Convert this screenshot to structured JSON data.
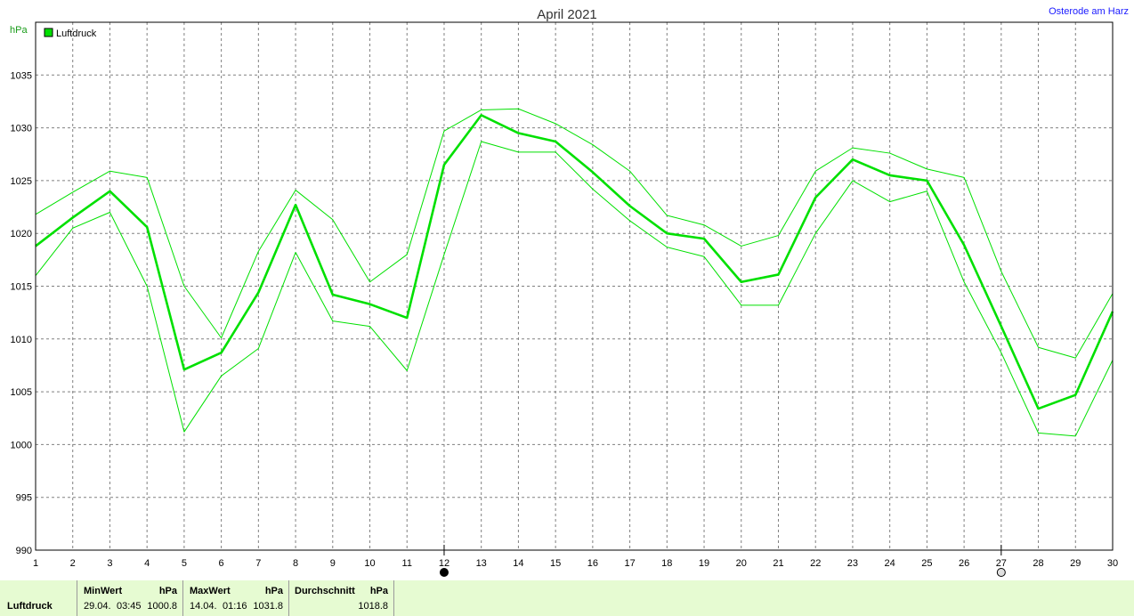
{
  "header": {
    "title": "April 2021",
    "location": "Osterode am Harz",
    "unit": "hPa"
  },
  "chart_data": {
    "type": "line",
    "title": "April 2021",
    "ylabel": "hPa",
    "xlabel": "",
    "legend": {
      "label": "Luftdruck",
      "placement": "top-left"
    },
    "x": [
      1,
      2,
      3,
      4,
      5,
      6,
      7,
      8,
      9,
      10,
      11,
      12,
      13,
      14,
      15,
      16,
      17,
      18,
      19,
      20,
      21,
      22,
      23,
      24,
      25,
      26,
      27,
      28,
      29,
      30
    ],
    "xlim": [
      1,
      30
    ],
    "ylim": [
      990,
      1040
    ],
    "yticks": [
      990,
      995,
      1000,
      1005,
      1010,
      1015,
      1020,
      1025,
      1030,
      1035
    ],
    "grid": true,
    "series": [
      {
        "name": "Luftdruck",
        "color": "#00e000",
        "values": [
          1018.8,
          1021.5,
          1024.0,
          1020.6,
          1007.1,
          1008.7,
          1014.4,
          1022.7,
          1014.2,
          1013.3,
          1012.0,
          1026.5,
          1031.2,
          1029.5,
          1028.7,
          1025.8,
          1022.6,
          1020.0,
          1019.5,
          1015.4,
          1016.1,
          1023.4,
          1027.0,
          1025.5,
          1025.0,
          1018.9,
          1011.2,
          1003.4,
          1004.7,
          1012.6
        ]
      },
      {
        "color": "#00e000",
        "values": [
          1021.8,
          1023.9,
          1025.9,
          1025.3,
          1015.0,
          1010.1,
          1018.3,
          1024.1,
          1021.3,
          1015.4,
          1018.0,
          1029.7,
          1031.7,
          1031.8,
          1030.4,
          1028.4,
          1025.9,
          1021.7,
          1020.8,
          1018.8,
          1019.8,
          1025.9,
          1028.1,
          1027.6,
          1026.1,
          1025.3,
          1016.4,
          1009.2,
          1008.2,
          1014.3
        ]
      },
      {
        "color": "#00e000",
        "values": [
          1016.0,
          1020.5,
          1022.0,
          1015.0,
          1001.2,
          1006.5,
          1009.1,
          1018.2,
          1011.7,
          1011.2,
          1007.0,
          1018.0,
          1028.7,
          1027.7,
          1027.7,
          1024.2,
          1021.2,
          1018.7,
          1017.8,
          1013.2,
          1013.2,
          1020.0,
          1025.0,
          1023.0,
          1024.0,
          1015.4,
          1008.7,
          1001.1,
          1000.8,
          1008.0
        ]
      }
    ],
    "moon_phases": [
      {
        "day": 12,
        "phase": "new-moon"
      },
      {
        "day": 27,
        "phase": "full-moon"
      }
    ]
  },
  "footer": {
    "label": "Luftdruck",
    "min": {
      "header": "MinWert",
      "unit": "hPa",
      "date": "29.04.",
      "time": "03:45",
      "value": "1000.8"
    },
    "max": {
      "header": "MaxWert",
      "unit": "hPa",
      "date": "14.04.",
      "time": "01:16",
      "value": "1031.8"
    },
    "avg": {
      "header": "Durchschnitt",
      "unit": "hPa",
      "value": "1018.8"
    }
  }
}
